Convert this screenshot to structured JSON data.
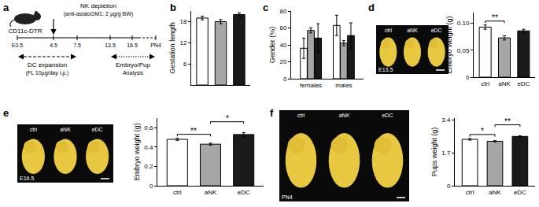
{
  "panel_labels": [
    "a",
    "b",
    "c",
    "d",
    "e",
    "f"
  ],
  "diagram": {
    "mouse": "CD11c-DTR",
    "treatment": {
      "title": "NK depletion",
      "detail": "(anti-asialoGM1: 2 µg/g BW)"
    },
    "timeline": [
      "E0.5",
      "4.5",
      "7.5",
      "13.5",
      "16.5",
      "PN4"
    ],
    "phases": [
      {
        "title": "DC expansion",
        "detail": "(FL 10µg/day i.p.)"
      },
      {
        "title": "Embryo/Pup",
        "detail": "Analysis"
      }
    ]
  },
  "photos": [
    {
      "stage": "E13.5",
      "labels": [
        "ctrl",
        "aNK",
        "eDC"
      ]
    },
    {
      "stage": "E16.5",
      "labels": [
        "ctrl",
        "aNK",
        "eDC"
      ]
    },
    {
      "stage": "PN4",
      "labels": [
        "ctrl",
        "aNK",
        "eDC"
      ]
    }
  ],
  "chart_data": [
    {
      "type": "bar",
      "y_label": "Gestation length",
      "categories": [
        null,
        null,
        null
      ],
      "values": [
        19,
        18,
        20
      ],
      "errors": [
        0.5,
        0.6,
        0.5
      ],
      "colors": [
        "#ffffff",
        "#a6a6a6",
        "#1a1a1a"
      ],
      "ylim": [
        0,
        21
      ],
      "yticks": [
        6,
        12,
        18
      ],
      "tick_labels": "y",
      "grid": false
    },
    {
      "type": "bar",
      "y_label": "Gender (%)",
      "categories": [
        "females",
        "males"
      ],
      "series": [
        {
          "color": "#ffffff",
          "values": [
            36,
            63
          ],
          "errors": [
            12,
            12
          ]
        },
        {
          "color": "#a6a6a6",
          "values": [
            57,
            42
          ],
          "errors": [
            3,
            3
          ]
        },
        {
          "color": "#1a1a1a",
          "values": [
            48,
            51
          ],
          "errors": [
            17,
            15
          ]
        }
      ],
      "ylim": [
        0,
        80
      ],
      "yticks": [
        0,
        20,
        40,
        60,
        80
      ],
      "grid": false
    },
    {
      "type": "bar",
      "y_label": "Embryo weight (g)",
      "categories": [
        "ctrl",
        "aNK",
        "eDC"
      ],
      "values": [
        0.093,
        0.073,
        0.086
      ],
      "errors": [
        0.004,
        0.004,
        0.003
      ],
      "colors": [
        "#ffffff",
        "#a6a6a6",
        "#1a1a1a"
      ],
      "ylim": [
        0,
        0.12
      ],
      "yticks": [
        0,
        0.05,
        {
          "value": 0.1,
          "label": "0.10"
        }
      ],
      "grid": false,
      "annotations": [
        {
          "text": "**",
          "between": [
            "ctrl",
            "aNK"
          ]
        }
      ]
    },
    {
      "type": "bar",
      "y_label": "Embryo weight (g)",
      "categories": [
        "ctrl",
        "aNK",
        "eDC"
      ],
      "values": [
        0.48,
        0.43,
        0.53
      ],
      "errors": [
        0.01,
        0.01,
        0.02
      ],
      "colors": [
        "#ffffff",
        "#a6a6a6",
        "#1a1a1a"
      ],
      "ylim": [
        0,
        0.7
      ],
      "yticks": [
        0,
        0.2,
        0.4,
        0.6
      ],
      "grid": false,
      "annotations": [
        {
          "text": "**",
          "between": [
            "ctrl",
            "aNK"
          ]
        },
        {
          "text": "*",
          "between": [
            "aNK",
            "eDC"
          ]
        }
      ]
    },
    {
      "type": "bar",
      "y_label": "Pups weight (g)",
      "categories": [
        "ctrl",
        "aNK",
        "eDC"
      ],
      "values": [
        2.4,
        2.3,
        2.55
      ],
      "errors": [
        0.04,
        0.03,
        0.04
      ],
      "colors": [
        "#ffffff",
        "#a6a6a6",
        "#1a1a1a"
      ],
      "ylim": [
        0,
        3.5
      ],
      "yticks": [
        0,
        1.7,
        3.4
      ],
      "grid": false,
      "annotations": [
        {
          "text": "*",
          "between": [
            "ctrl",
            "aNK"
          ]
        },
        {
          "text": "**",
          "between": [
            "aNK",
            "eDC"
          ]
        }
      ]
    }
  ]
}
